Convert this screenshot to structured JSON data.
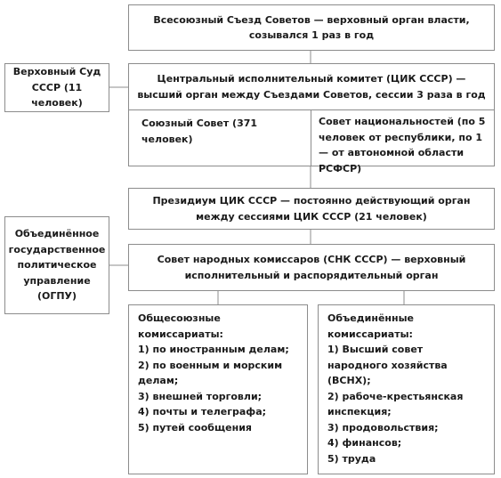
{
  "congress": "Всесоюзный Съезд Советов — верховный орган власти, созывался 1 раз в год",
  "supreme_court": "Верховный Суд СССР (11 человек)",
  "cik": "Центральный исполнительный комитет (ЦИК СССР) — высший орган между Съездами Советов, сессии 3 раза в год",
  "union_council": "Союзный Совет (371 человек)",
  "council_nationalities": "Совет национальностей (по 5 человек от республики, по 1 — от автономной области РСФСР)",
  "presidium": "Президиум ЦИК СССР — постоянно действующий орган между сессиями ЦИК СССР (21 человек)",
  "ogpu": "Объединённое государственное политическое управление (ОГПУ)",
  "snk": "Совет народных комиссаров (СНК СССР) — верховный исполнительный и распорядительный орган",
  "all_union": {
    "title": "Общесоюзные комиссариаты:",
    "items": [
      "1) по иностранным делам;",
      "2) по военным и морским делам;",
      "3) внешней торговли;",
      "4) почты и телеграфа;",
      "5) путей сообщения"
    ]
  },
  "united": {
    "title": "Объединённые комиссариаты:",
    "items": [
      "1) Высший совет народного хозяйства (ВСНХ);",
      "2) рабоче-крестьянская инспекция;",
      "3) продовольствия;",
      "4) финансов;",
      "5) труда"
    ]
  },
  "colors": {
    "border": "#8c8c8c",
    "text": "#1a1a1a",
    "background": "#ffffff"
  }
}
